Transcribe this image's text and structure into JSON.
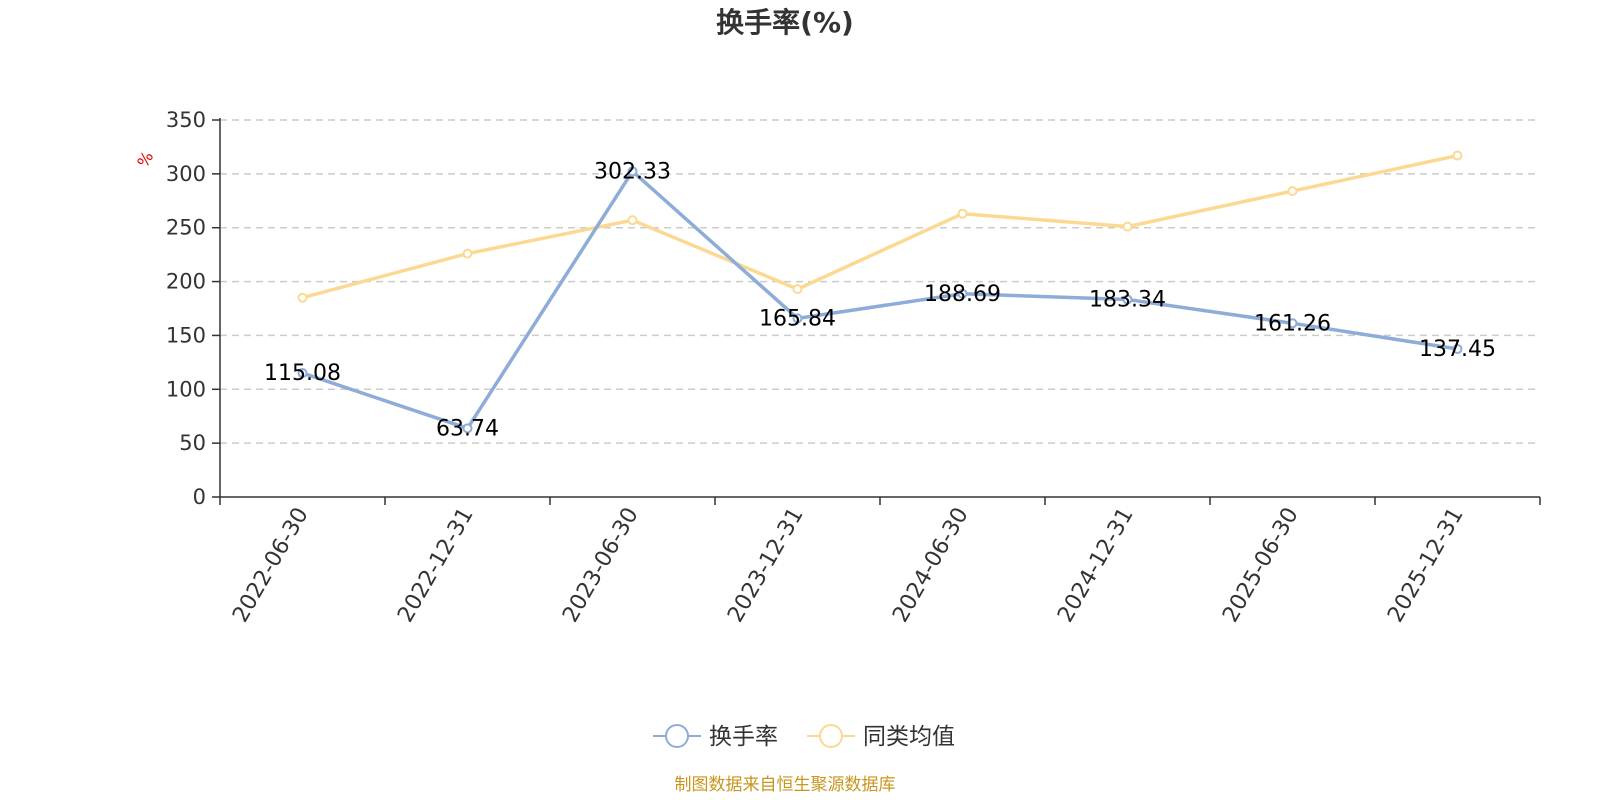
{
  "chart_data": {
    "type": "line",
    "title": "换手率(%)",
    "ylabel": "%",
    "ylim": [
      0,
      350
    ],
    "yticks": [
      0,
      50,
      100,
      150,
      200,
      250,
      300,
      350
    ],
    "grid": true,
    "legend_position": "bottom",
    "categories": [
      "2022-06-30",
      "2022-12-31",
      "2023-06-30",
      "2023-12-31",
      "2024-06-30",
      "2024-12-31",
      "2025-06-30",
      "2025-12-31"
    ],
    "series": [
      {
        "name": "换手率",
        "color": "#8eacd8",
        "values": [
          115.08,
          63.74,
          302.33,
          165.84,
          188.69,
          183.34,
          161.26,
          137.45
        ],
        "labels": [
          "115.08",
          "63.74",
          "302.33",
          "165.84",
          "188.69",
          "183.34",
          "161.26",
          "137.45"
        ]
      },
      {
        "name": "同类均值",
        "color": "#fbd993",
        "values": [
          185,
          226,
          257,
          193,
          263,
          251,
          284,
          317
        ]
      }
    ]
  },
  "source": "制图数据来自恒生聚源数据库"
}
